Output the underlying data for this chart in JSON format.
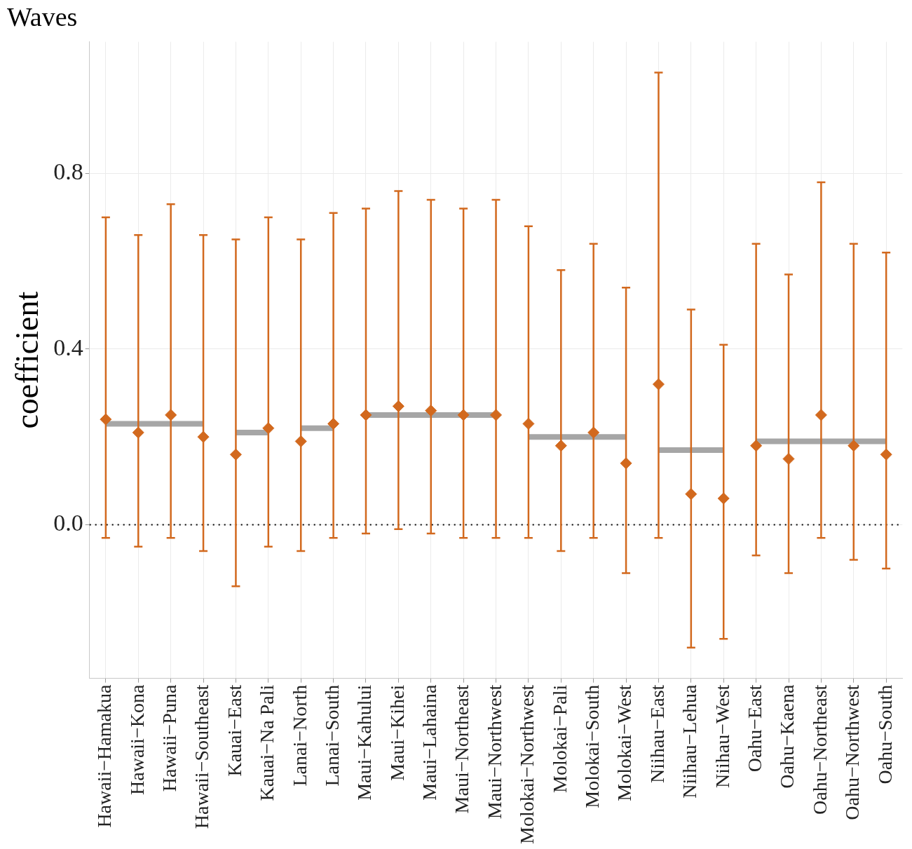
{
  "chart_data": {
    "type": "scatter",
    "title": "Waves",
    "ylabel": "coefficient",
    "categories": [
      "Hawaii−Hamakua",
      "Hawaii−Kona",
      "Hawaii−Puna",
      "Hawaii−Southeast",
      "Kauai−East",
      "Kauai−Na Pali",
      "Lanai−North",
      "Lanai−South",
      "Maui−Kahului",
      "Maui−Kihei",
      "Maui−Lahaina",
      "Maui−Northeast",
      "Maui−Northwest",
      "Molokai−Northwest",
      "Molokai−Pali",
      "Molokai−South",
      "Molokai−West",
      "Niihau−East",
      "Niihau−Lehua",
      "Niihau−West",
      "Oahu−East",
      "Oahu−Kaena",
      "Oahu−Northeast",
      "Oahu−Northwest",
      "Oahu−South"
    ],
    "series": [
      {
        "type": "line",
        "color": "#a6a6a6",
        "marker": "none",
        "values": [
          0.23,
          0.23,
          0.23,
          0.23,
          null,
          null,
          null,
          null,
          null,
          null,
          null,
          null,
          null,
          null,
          null,
          null,
          null,
          null,
          null,
          null,
          null,
          null,
          null,
          null,
          null
        ]
      },
      {
        "type": "line",
        "color": "#a6a6a6",
        "marker": "none",
        "values": [
          null,
          null,
          null,
          null,
          0.21,
          0.21,
          null,
          null,
          null,
          null,
          null,
          null,
          null,
          null,
          null,
          null,
          null,
          null,
          null,
          null,
          null,
          null,
          null,
          null,
          null
        ]
      },
      {
        "type": "line",
        "color": "#a6a6a6",
        "marker": "none",
        "values": [
          null,
          null,
          null,
          null,
          null,
          null,
          0.22,
          0.22,
          null,
          null,
          null,
          null,
          null,
          null,
          null,
          null,
          null,
          null,
          null,
          null,
          null,
          null,
          null,
          null,
          null
        ]
      },
      {
        "type": "line",
        "color": "#a6a6a6",
        "marker": "none",
        "values": [
          null,
          null,
          null,
          null,
          null,
          null,
          null,
          null,
          0.25,
          0.25,
          0.25,
          0.25,
          0.25,
          null,
          null,
          null,
          null,
          null,
          null,
          null,
          null,
          null,
          null,
          null,
          null
        ]
      },
      {
        "type": "line",
        "color": "#a6a6a6",
        "marker": "none",
        "values": [
          null,
          null,
          null,
          null,
          null,
          null,
          null,
          null,
          null,
          null,
          null,
          null,
          null,
          0.2,
          0.2,
          0.2,
          0.2,
          null,
          null,
          null,
          null,
          null,
          null,
          null,
          null
        ]
      },
      {
        "type": "line",
        "color": "#a6a6a6",
        "marker": "none",
        "values": [
          null,
          null,
          null,
          null,
          null,
          null,
          null,
          null,
          null,
          null,
          null,
          null,
          null,
          null,
          null,
          null,
          null,
          0.17,
          0.17,
          0.17,
          null,
          null,
          null,
          null,
          null
        ]
      },
      {
        "type": "line",
        "color": "#a6a6a6",
        "marker": "none",
        "values": [
          null,
          null,
          null,
          null,
          null,
          null,
          null,
          null,
          null,
          null,
          null,
          null,
          null,
          null,
          null,
          null,
          null,
          null,
          null,
          null,
          0.19,
          0.19,
          0.19,
          0.19,
          0.19
        ]
      },
      {
        "color": "#d2691e",
        "marker": "diamond",
        "values": [
          0.24,
          0.21,
          0.25,
          0.2,
          0.16,
          0.22,
          0.19,
          0.23,
          0.25,
          0.27,
          0.26,
          0.25,
          0.25,
          0.23,
          0.18,
          0.21,
          0.14,
          0.32,
          0.07,
          0.06,
          0.18,
          0.15,
          0.25,
          0.18,
          0.16
        ],
        "errors": [
          [
            -0.03,
            0.7
          ],
          [
            -0.05,
            0.66
          ],
          [
            -0.03,
            0.73
          ],
          [
            -0.06,
            0.66
          ],
          [
            -0.14,
            0.65
          ],
          [
            -0.05,
            0.7
          ],
          [
            -0.06,
            0.65
          ],
          [
            -0.03,
            0.71
          ],
          [
            -0.02,
            0.72
          ],
          [
            -0.01,
            0.76
          ],
          [
            -0.02,
            0.74
          ],
          [
            -0.03,
            0.72
          ],
          [
            -0.03,
            0.74
          ],
          [
            -0.03,
            0.68
          ],
          [
            -0.06,
            0.58
          ],
          [
            -0.03,
            0.64
          ],
          [
            -0.11,
            0.54
          ],
          [
            -0.03,
            1.03
          ],
          [
            -0.28,
            0.49
          ],
          [
            -0.26,
            0.41
          ],
          [
            -0.07,
            0.64
          ],
          [
            -0.11,
            0.57
          ],
          [
            -0.03,
            0.78
          ],
          [
            -0.08,
            0.64
          ],
          [
            -0.1,
            0.62
          ]
        ]
      }
    ],
    "ylim": [
      -0.35,
      1.1
    ],
    "yticks": [
      {
        "value": 0,
        "label": "0.0"
      },
      0.4,
      0.8
    ],
    "ref_lines": [
      {
        "axis": "y",
        "value": 0,
        "color": "#000000",
        "line_style": "dotted"
      }
    ],
    "grid": true,
    "legend": false
  }
}
